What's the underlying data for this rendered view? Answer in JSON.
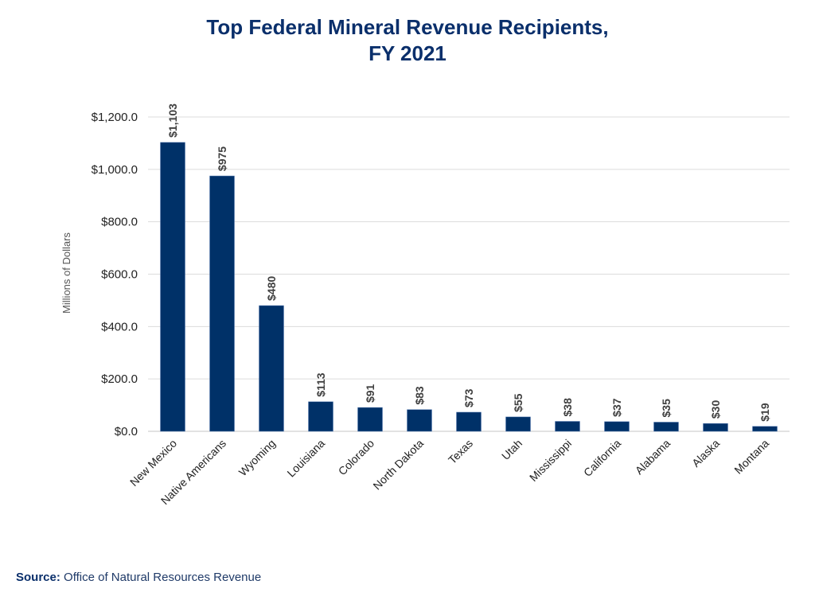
{
  "chart_data": {
    "type": "bar",
    "title_line1": "Top Federal Mineral Revenue Recipients,",
    "title_line2": "FY 2021",
    "xlabel": "",
    "ylabel": "Millions of Dollars",
    "ylim": [
      0,
      1200
    ],
    "yticks": [
      0,
      200,
      400,
      600,
      800,
      1000,
      1200
    ],
    "ytick_labels": [
      "$0.0",
      "$200.0",
      "$400.0",
      "$600.0",
      "$800.0",
      "$1,000.0",
      "$1,200.0"
    ],
    "grid": true,
    "categories": [
      "New Mexico",
      "Native Americans",
      "Wyoming",
      "Louisiana",
      "Colorado",
      "North Dakota",
      "Texas",
      "Utah",
      "Mississippi",
      "California",
      "Alabama",
      "Alaska",
      "Montana"
    ],
    "values": [
      1103,
      975,
      480,
      113,
      91,
      83,
      73,
      55,
      38,
      37,
      35,
      30,
      19
    ],
    "data_labels": [
      "$1,103",
      "$975",
      "$480",
      "$113",
      "$91",
      "$83",
      "$73",
      "$55",
      "$38",
      "$37",
      "$35",
      "$30",
      "$19"
    ],
    "bar_color": "#003168"
  },
  "source": {
    "label": "Source:",
    "text": "Office of Natural Resources Revenue"
  }
}
